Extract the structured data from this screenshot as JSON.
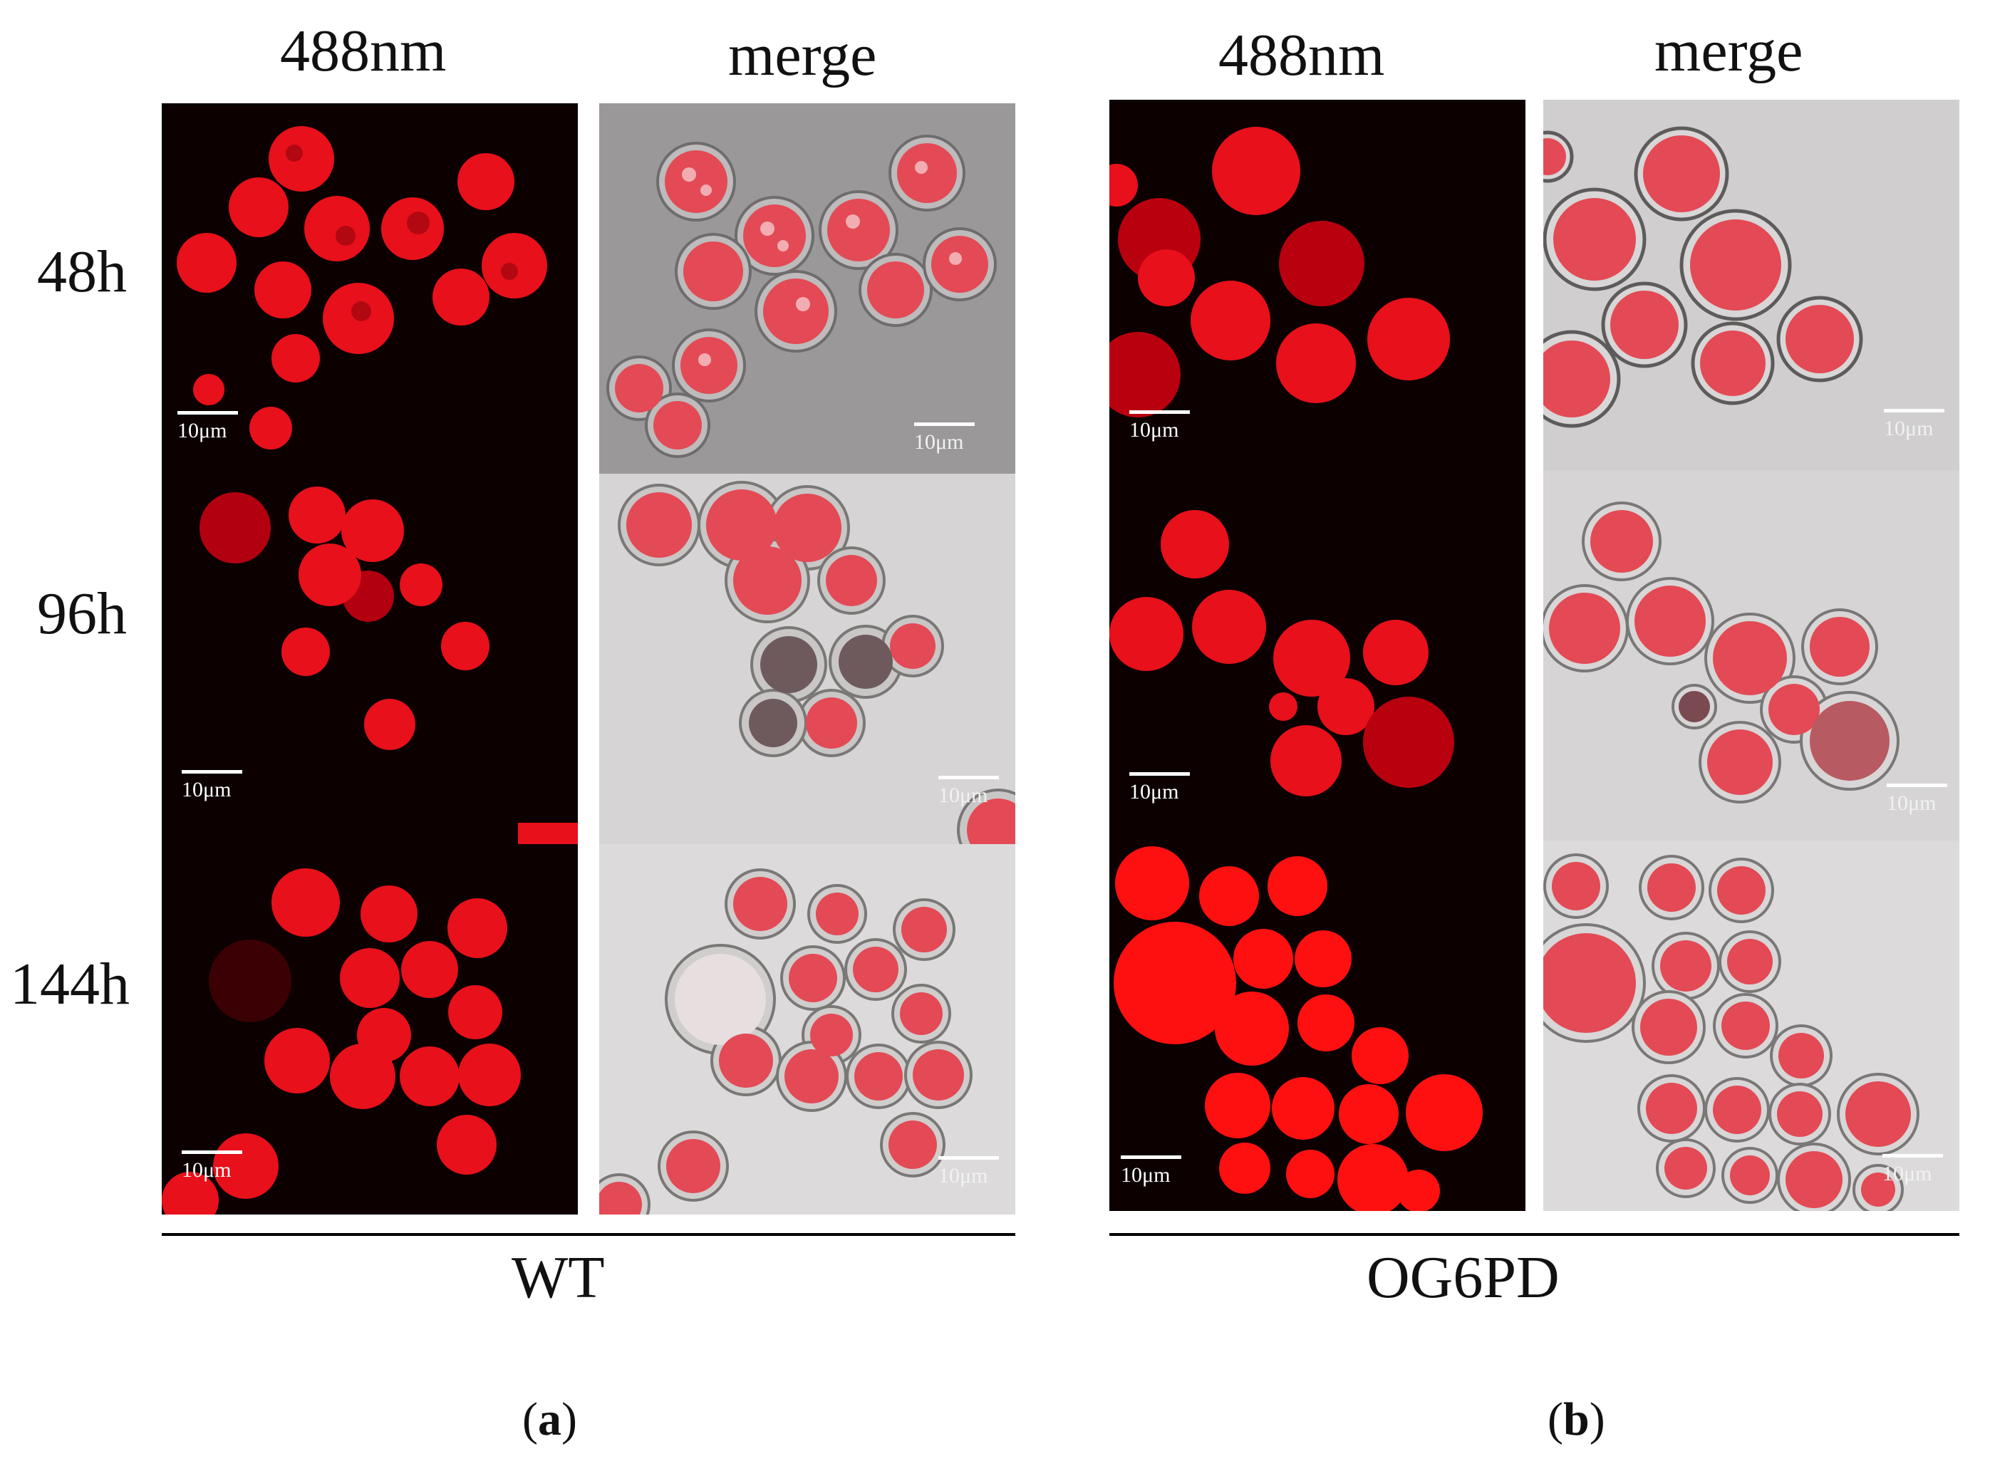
{
  "column_headers": {
    "wt_fluor": "488nm",
    "wt_merge": "merge",
    "og_fluor": "488nm",
    "og_merge": "merge"
  },
  "row_headers": [
    "48h",
    "96h",
    "144h"
  ],
  "group_labels": {
    "wt": "WT",
    "og": "OG6PD"
  },
  "panel_labels": {
    "a": {
      "open": "(",
      "letter": "a",
      "close": ")"
    },
    "b": {
      "open": "(",
      "letter": "b",
      "close": ")"
    }
  },
  "scale_bar_text": "10μm",
  "colors": {
    "fluor_background": "#0c0000",
    "fluor_cell": "#e8101a",
    "brightfield_background": "#c8c6c6",
    "brightfield_cell": "#e8505a"
  },
  "image_grid": [
    {
      "id": "wt-48h-488nm",
      "type": "fluorescence"
    },
    {
      "id": "wt-48h-merge",
      "type": "merge"
    },
    {
      "id": "wt-96h-488nm",
      "type": "fluorescence"
    },
    {
      "id": "wt-96h-merge",
      "type": "merge"
    },
    {
      "id": "wt-144h-488nm",
      "type": "fluorescence"
    },
    {
      "id": "wt-144h-merge",
      "type": "merge"
    },
    {
      "id": "og-48h-488nm",
      "type": "fluorescence"
    },
    {
      "id": "og-48h-merge",
      "type": "merge"
    },
    {
      "id": "og-96h-488nm",
      "type": "fluorescence"
    },
    {
      "id": "og-96h-merge",
      "type": "merge"
    },
    {
      "id": "og-144h-488nm",
      "type": "fluorescence"
    },
    {
      "id": "og-144h-merge",
      "type": "merge"
    }
  ]
}
